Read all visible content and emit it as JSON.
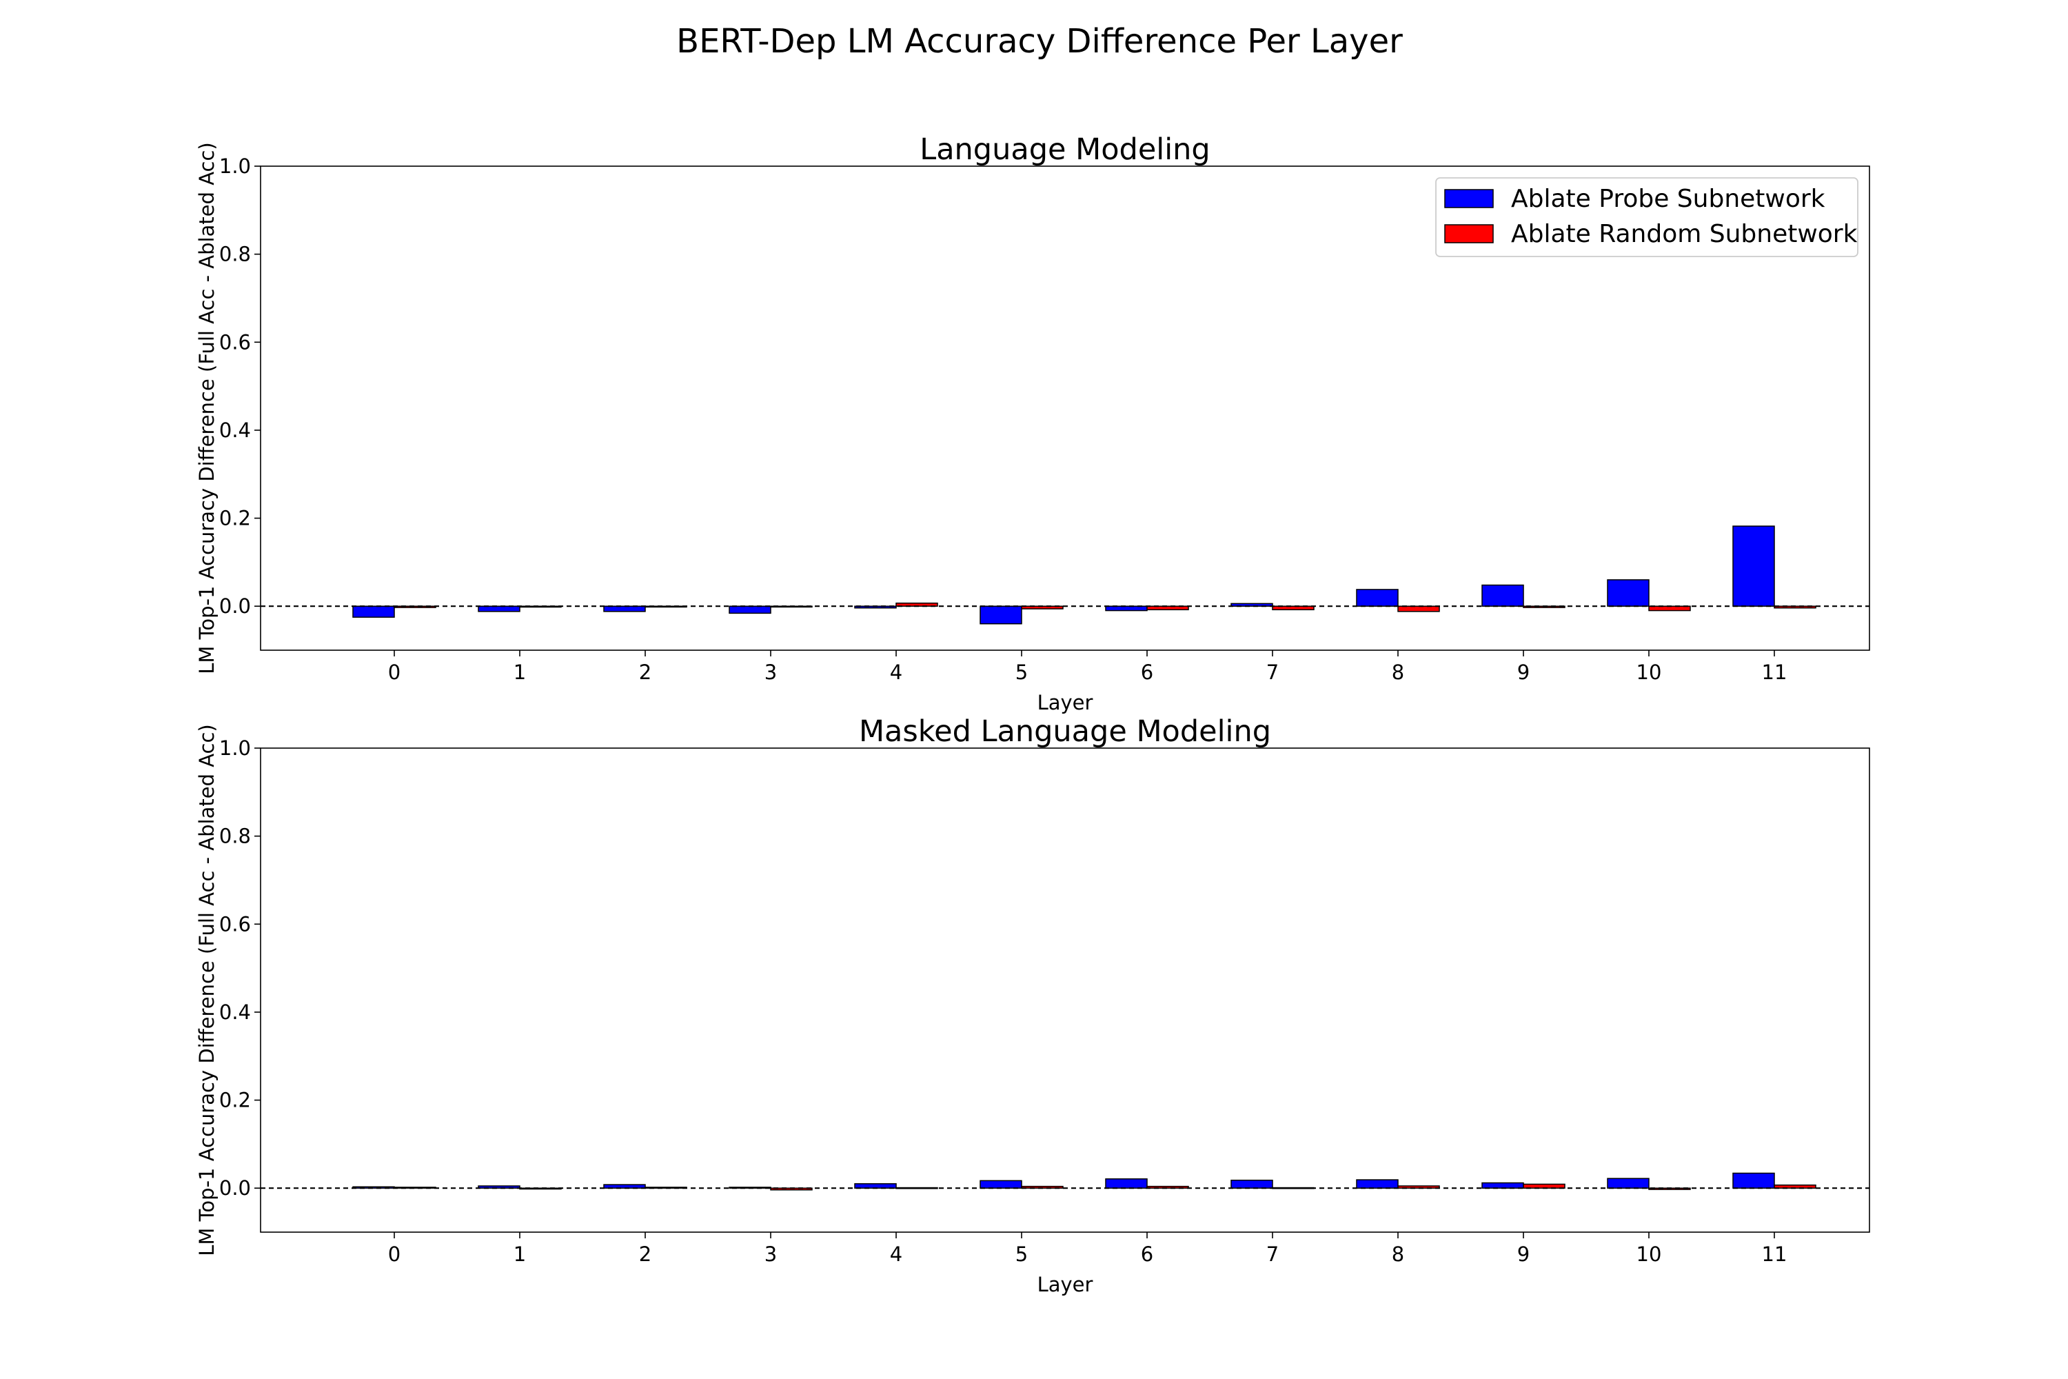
{
  "figure": {
    "title": "BERT-Dep LM Accuracy Difference Per Layer"
  },
  "legend": {
    "placement": "top-right",
    "entries": [
      {
        "label": "Ablate Probe Subnetwork",
        "color": "#0000ff"
      },
      {
        "label": "Ablate Random Subnetwork",
        "color": "#ff0000"
      }
    ]
  },
  "colors": {
    "probe": "#0000ff",
    "random": "#ff0000",
    "edge": "#000000"
  },
  "chart_data": [
    {
      "type": "bar",
      "title": "Language Modeling",
      "xlabel": "Layer",
      "ylabel": "LM Top-1 Accuracy Difference (Full Acc - Ablated Acc)",
      "ylim": [
        -0.1,
        1.0
      ],
      "yticks": [
        "0.0",
        "0.2",
        "0.4",
        "0.6",
        "0.8",
        "1.0"
      ],
      "categories": [
        "0",
        "1",
        "2",
        "3",
        "4",
        "5",
        "6",
        "7",
        "8",
        "9",
        "10",
        "11"
      ],
      "reference_line": 0.0,
      "grid": false,
      "legend": true,
      "series": [
        {
          "name": "Ablate Probe Subnetwork",
          "values": [
            -0.025,
            -0.012,
            -0.012,
            -0.016,
            -0.004,
            -0.04,
            -0.01,
            0.006,
            0.038,
            0.048,
            0.06,
            0.182
          ]
        },
        {
          "name": "Ablate Random Subnetwork",
          "values": [
            -0.003,
            -0.002,
            -0.001,
            -0.001,
            0.007,
            -0.006,
            -0.008,
            -0.008,
            -0.012,
            -0.003,
            -0.01,
            -0.004
          ]
        }
      ]
    },
    {
      "type": "bar",
      "title": "Masked Language Modeling",
      "xlabel": "Layer",
      "ylabel": "LM Top-1 Accuracy Difference (Full Acc - Ablated Acc)",
      "ylim": [
        -0.1,
        1.0
      ],
      "yticks": [
        "0.0",
        "0.2",
        "0.4",
        "0.6",
        "0.8",
        "1.0"
      ],
      "categories": [
        "0",
        "1",
        "2",
        "3",
        "4",
        "5",
        "6",
        "7",
        "8",
        "9",
        "10",
        "11"
      ],
      "reference_line": 0.0,
      "grid": false,
      "legend": false,
      "series": [
        {
          "name": "Ablate Probe Subnetwork",
          "values": [
            0.003,
            0.005,
            0.008,
            0.002,
            0.01,
            0.017,
            0.021,
            0.018,
            0.019,
            0.012,
            0.022,
            0.034
          ]
        },
        {
          "name": "Ablate Random Subnetwork",
          "values": [
            0.002,
            -0.002,
            0.002,
            -0.004,
            0.001,
            0.004,
            0.004,
            0.001,
            0.005,
            0.009,
            -0.003,
            0.007
          ]
        }
      ]
    }
  ]
}
